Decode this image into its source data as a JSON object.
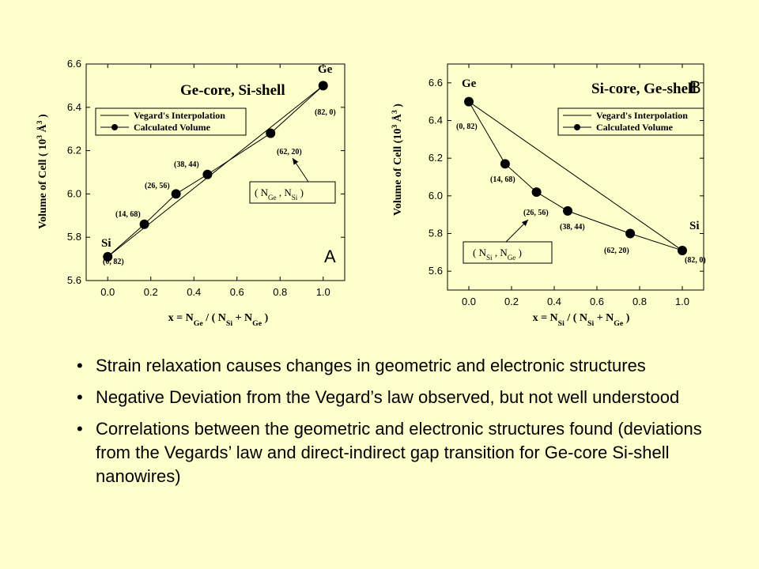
{
  "chart_data": [
    {
      "type": "line",
      "title": "Ge-core, Si-shell",
      "panel_label": "A",
      "xlabel": "x = N_Ge / ( N_Si + N_Ge )",
      "ylabel": "Volume of Cell ( 10^3 Å^3 )",
      "xlim": [
        -0.1,
        1.1
      ],
      "ylim": [
        5.6,
        6.6
      ],
      "xticks": [
        "0.0",
        "0.2",
        "0.4",
        "0.6",
        "0.8",
        "1.0"
      ],
      "yticks": [
        "5.6",
        "5.8",
        "6.0",
        "6.2",
        "6.4",
        "6.6"
      ],
      "legend": [
        "Vegard's Interpolation",
        "Calculated Volume"
      ],
      "legend_position": "upper-left",
      "series": [
        {
          "name": "Vegard's Interpolation",
          "x": [
            0.0,
            1.0
          ],
          "y": [
            5.71,
            6.5
          ]
        },
        {
          "name": "Calculated Volume",
          "x": [
            0.0,
            0.17,
            0.317,
            0.463,
            0.756,
            1.0
          ],
          "y": [
            5.71,
            5.86,
            6.0,
            6.09,
            6.28,
            6.5
          ]
        }
      ],
      "point_labels": [
        "(0, 82)",
        "(14, 68)",
        "(26, 56)",
        "(38, 44)",
        "(62, 20)",
        "(82, 0)"
      ],
      "end_labels": [
        "Si",
        "Ge"
      ],
      "annotation": "( N_Ge , N_Si )"
    },
    {
      "type": "line",
      "title": "Si-core, Ge-shell",
      "panel_label": "B",
      "xlabel": "x = N_Si / ( N_Si + N_Ge )",
      "ylabel": "Volume of Cell (10^3 Å^3 )",
      "xlim": [
        -0.1,
        1.1
      ],
      "ylim": [
        5.5,
        6.7
      ],
      "xticks": [
        "0.0",
        "0.2",
        "0.4",
        "0.6",
        "0.8",
        "1.0"
      ],
      "yticks": [
        "5.6",
        "5.8",
        "6.0",
        "6.2",
        "6.4",
        "6.6"
      ],
      "legend": [
        "Vegard's Interpolation",
        "Calculated Volume"
      ],
      "legend_position": "upper-right",
      "series": [
        {
          "name": "Vegard's Interpolation",
          "x": [
            0.0,
            1.0
          ],
          "y": [
            6.5,
            5.71
          ]
        },
        {
          "name": "Calculated Volume",
          "x": [
            0.0,
            0.17,
            0.317,
            0.463,
            0.756,
            1.0
          ],
          "y": [
            6.5,
            6.17,
            6.02,
            5.92,
            5.8,
            5.71
          ]
        }
      ],
      "point_labels": [
        "(0, 82)",
        "(14, 68)",
        "(26, 56)",
        "(38, 44)",
        "(62, 20)",
        "(82, 0)"
      ],
      "end_labels": [
        "Ge",
        "Si"
      ],
      "annotation": "( N_Si , N_Ge )"
    }
  ],
  "bullets": [
    "Strain relaxation causes changes in geometric and electronic structures",
    "Negative Deviation from the Vegard’s law observed, but not well understood",
    "Correlations between the geometric and electronic structures found (deviations from the Vegards’ law and direct-indirect gap transition for Ge-core Si-shell nanowires)"
  ]
}
